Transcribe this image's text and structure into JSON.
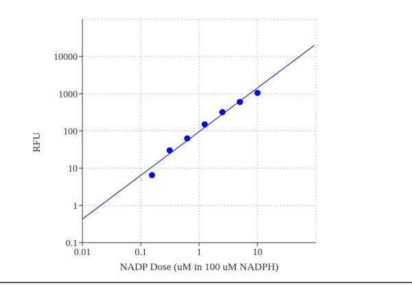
{
  "chart_data": {
    "type": "scatter",
    "title": "",
    "xlabel": "NADP Dose (uM in 100 uM NADPH)",
    "ylabel": "RFU",
    "x_scale": "log",
    "y_scale": "log",
    "xlim": [
      0.01,
      100
    ],
    "ylim": [
      0.1,
      100000
    ],
    "x_ticks": [
      {
        "value": 0.01,
        "label": "0.01"
      },
      {
        "value": 0.1,
        "label": "0.1"
      },
      {
        "value": 1,
        "label": "1"
      },
      {
        "value": 10,
        "label": "10"
      }
    ],
    "y_ticks": [
      {
        "value": 0.1,
        "label": "0.1"
      },
      {
        "value": 1,
        "label": "1"
      },
      {
        "value": 10,
        "label": "10"
      },
      {
        "value": 100,
        "label": "100"
      },
      {
        "value": 1000,
        "label": "1000"
      },
      {
        "value": 10000,
        "label": "10000"
      }
    ],
    "grid": "dotted",
    "legend": "none",
    "points": {
      "x": [
        0.156,
        0.3125,
        0.625,
        1.25,
        2.5,
        5,
        10
      ],
      "y": [
        6.5,
        30,
        63,
        150,
        320,
        600,
        1050
      ]
    },
    "fit_line": {
      "from": {
        "x": 0.01,
        "y": 0.43
      },
      "to": {
        "x": 100,
        "y": 20000
      }
    },
    "colors": {
      "points": "#0000ee",
      "fit_line": "#1a1aa8",
      "grid": "#aaaaaa",
      "axis": "#333333",
      "text": "#333333"
    }
  }
}
